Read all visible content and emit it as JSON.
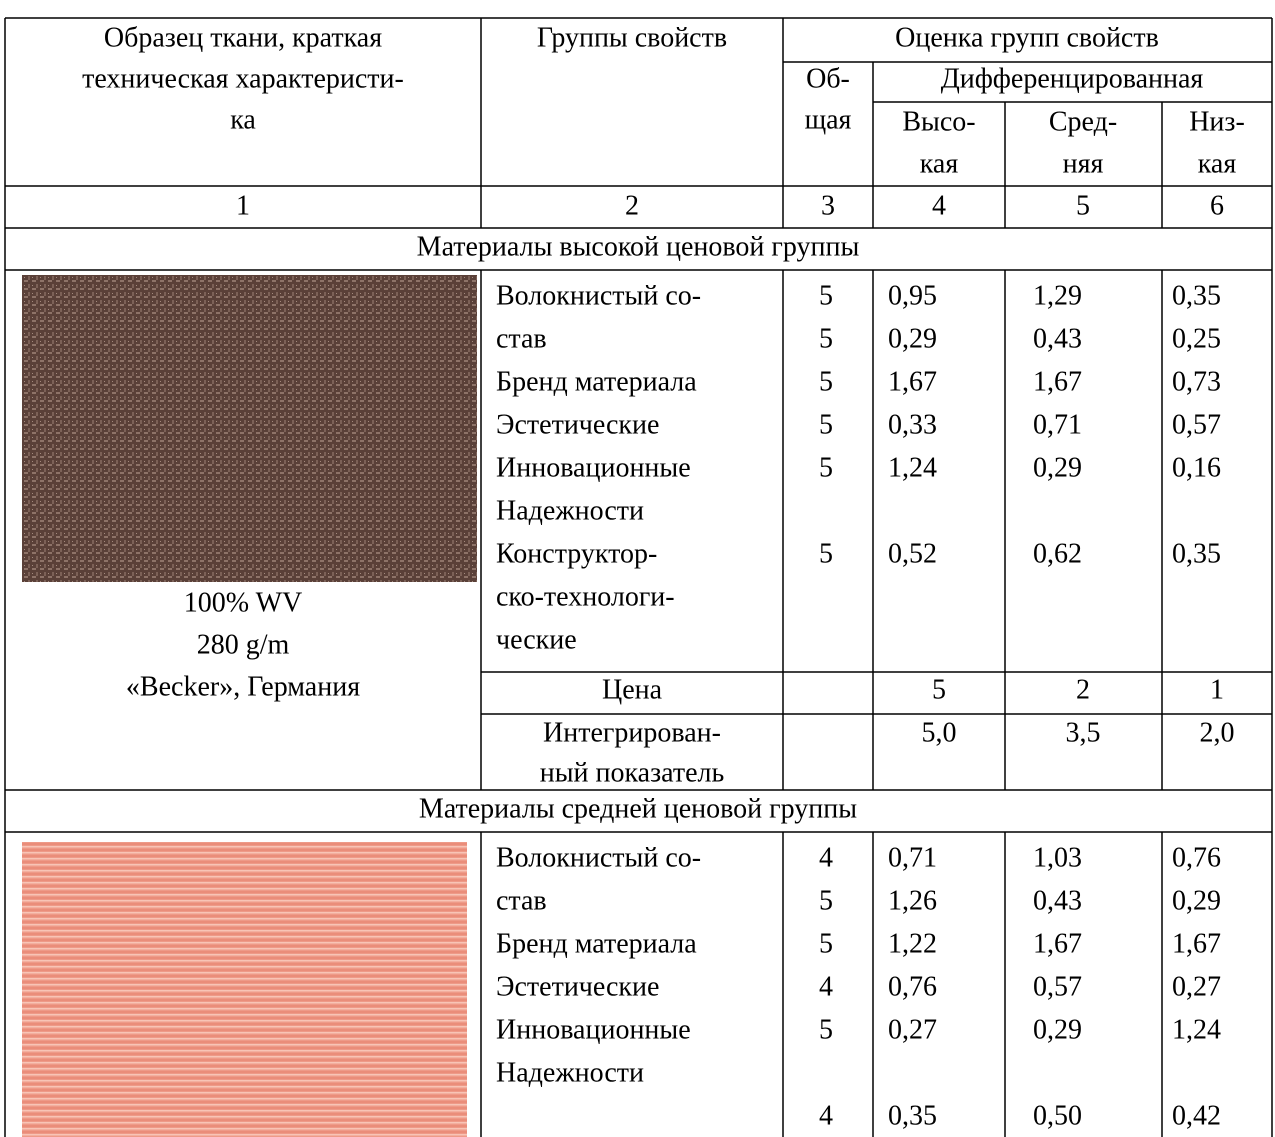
{
  "header": {
    "sample": [
      "Образец ткани, краткая",
      "техническая характеристи-",
      "ка"
    ],
    "groups": "Группы свойств",
    "rating": "Оценка групп свойств",
    "overall": [
      "Об-",
      "щая"
    ],
    "differentiated": "Дифференцированная",
    "high": [
      "Высо-",
      "кая"
    ],
    "medium": [
      "Сред-",
      "няя"
    ],
    "low": [
      "Низ-",
      "кая"
    ]
  },
  "column_numbers": [
    "1",
    "2",
    "3",
    "4",
    "5",
    "6"
  ],
  "sections": [
    {
      "title": "Материалы высокой ценовой группы",
      "sample": [
        "100% WV",
        "280 g/m",
        "«Becker», Германия"
      ],
      "group_lines": [
        "Волокнистый со-",
        "став",
        "Бренд материала",
        "Эстетические",
        "Инновационные",
        "Надежности",
        "Конструктор-",
        "ско-технологи-",
        "ческие"
      ],
      "rows": [
        [
          "5",
          "0,95",
          "1,29",
          "0,35"
        ],
        [
          "5",
          "0,29",
          "0,43",
          "0,25"
        ],
        [
          "5",
          "1,67",
          "1,67",
          "0,73"
        ],
        [
          "5",
          "0,33",
          "0,71",
          "0,57"
        ],
        [
          "5",
          "1,24",
          "0,29",
          "0,16"
        ],
        [
          "5",
          "0,52",
          "0,62",
          "0,35"
        ]
      ],
      "price": {
        "label": "Цена",
        "values": [
          "5",
          "2",
          "1"
        ]
      },
      "integrated": {
        "label": [
          "Интегрирован-",
          "ный показатель"
        ],
        "values": [
          "5,0",
          "3,5",
          "2,0"
        ]
      }
    },
    {
      "title": "Материалы средней ценовой группы",
      "group_lines": [
        "Волокнистый со-",
        "став",
        "Бренд материала",
        "Эстетические",
        "Инновационные",
        "Надежности"
      ],
      "rows": [
        [
          "4",
          "0,71",
          "1,03",
          "0,76"
        ],
        [
          "5",
          "1,26",
          "0,43",
          "0,29"
        ],
        [
          "5",
          "1,22",
          "1,67",
          "1,67"
        ],
        [
          "4",
          "0,76",
          "0,57",
          "0,27"
        ],
        [
          "5",
          "0,27",
          "0,29",
          "1,24"
        ],
        [
          "4",
          "0,35",
          "0,50",
          "0,42"
        ]
      ]
    }
  ]
}
